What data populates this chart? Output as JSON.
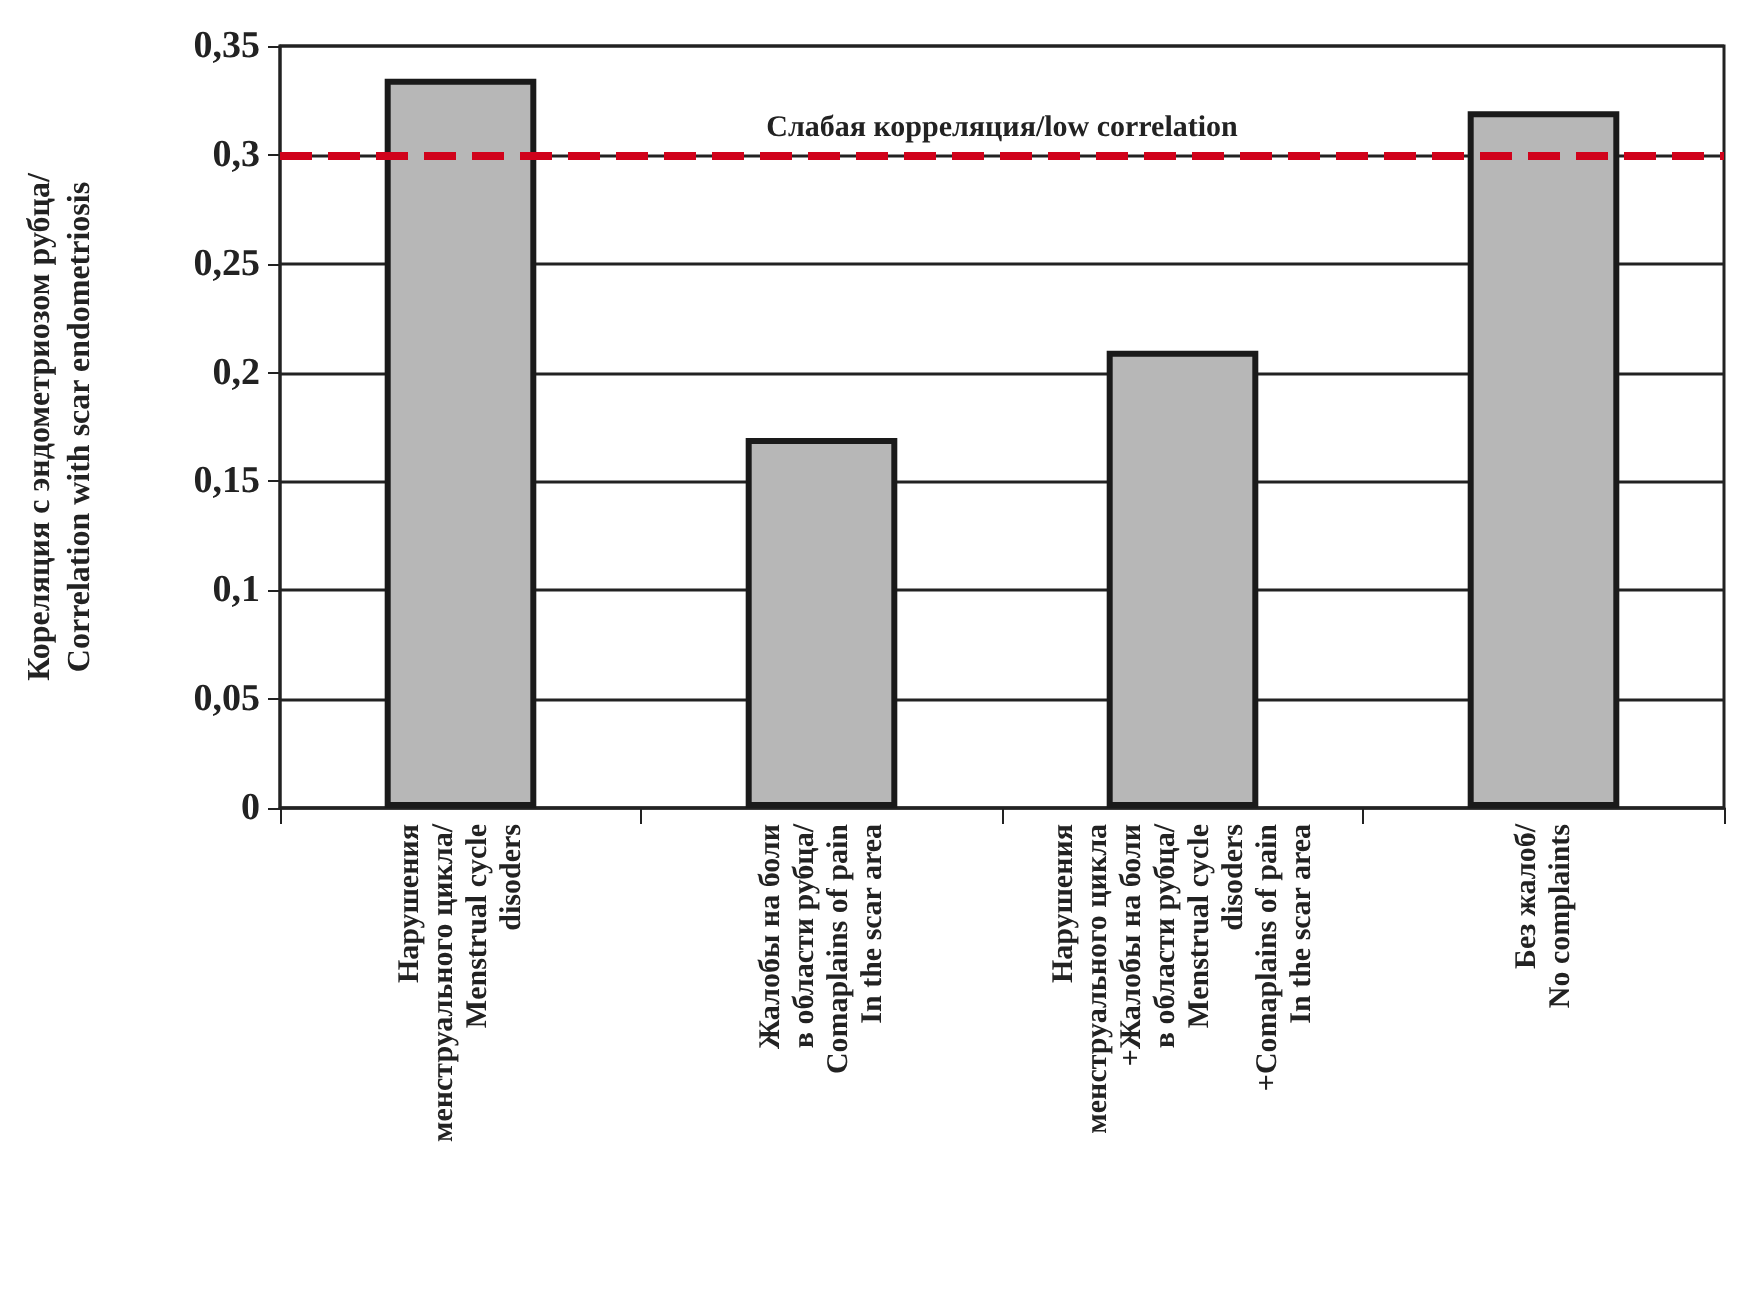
{
  "chart_data": {
    "type": "bar",
    "ylabel": "Кореляция с эндометриозом рубца/\nCorrelation with scar endometriosis",
    "categories": [
      "Нарушения\nменструального цикла/\nMenstrual cycle\ndisoders",
      "Жалобы на боли\nв области рубца/\nComaplains of pain\nIn the scar area",
      "Нарушения\nменструального цикла\n+Жалобы на боли\nв области рубца/\nMenstrual cycle\ndisoders\n+Comaplains of pain\nIn the scar area",
      "Без жалоб/\nNo complaints"
    ],
    "values": [
      0.335,
      0.17,
      0.21,
      0.32
    ],
    "color": "#b7b7b7",
    "ylim": [
      0,
      0.35
    ],
    "yticks": [
      {
        "value": 0,
        "label": "0"
      },
      {
        "value": 0.05,
        "label": "0,05"
      },
      {
        "value": 0.1,
        "label": "0,1"
      },
      {
        "value": 0.15,
        "label": "0,15"
      },
      {
        "value": 0.2,
        "label": "0,2"
      },
      {
        "value": 0.25,
        "label": "0,25"
      },
      {
        "value": 0.3,
        "label": "0,3"
      },
      {
        "value": 0.35,
        "label": "0,35"
      }
    ],
    "grid": "y",
    "ref_lines": [
      {
        "axis": "y",
        "value": 0.3,
        "label": "Слабая корреляция/low correlation",
        "color": "#d0021b",
        "line_style": "dashed"
      }
    ]
  }
}
